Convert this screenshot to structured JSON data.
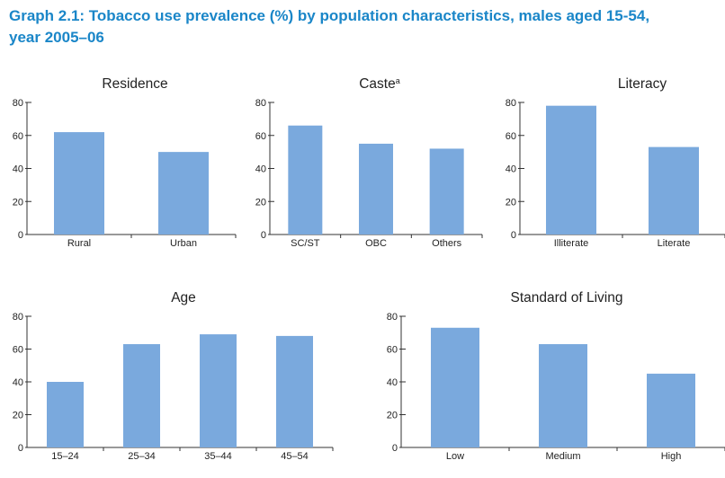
{
  "title_line1": "Graph 2.1: Tobacco use prevalence (%) by population characteristics, males aged 15-54,",
  "title_line2": "year 2005–06",
  "bar_color": "#7aa9dd",
  "title_color": "#1a86c8",
  "chart_data": [
    {
      "type": "bar",
      "title": "Residence",
      "title_sup": "",
      "categories": [
        "Rural",
        "Urban"
      ],
      "values": [
        62,
        50
      ],
      "ylim": [
        0,
        80
      ],
      "yticks": [
        0,
        20,
        40,
        60,
        80
      ]
    },
    {
      "type": "bar",
      "title": "Caste",
      "title_sup": "a",
      "categories": [
        "SC/ST",
        "OBC",
        "Others"
      ],
      "values": [
        66,
        55,
        52
      ],
      "ylim": [
        0,
        80
      ],
      "yticks": [
        0,
        20,
        40,
        60,
        80
      ]
    },
    {
      "type": "bar",
      "title": "Literacy",
      "title_sup": "",
      "categories": [
        "Illiterate",
        "Literate"
      ],
      "values": [
        78,
        53
      ],
      "ylim": [
        0,
        80
      ],
      "yticks": [
        0,
        20,
        40,
        60,
        80
      ]
    },
    {
      "type": "bar",
      "title": "Age",
      "title_sup": "",
      "categories": [
        "15–24",
        "25–34",
        "35–44",
        "45–54"
      ],
      "values": [
        40,
        63,
        69,
        68
      ],
      "ylim": [
        0,
        80
      ],
      "yticks": [
        0,
        20,
        40,
        60,
        80
      ]
    },
    {
      "type": "bar",
      "title": "Standard of Living",
      "title_sup": "",
      "categories": [
        "Low",
        "Medium",
        "High"
      ],
      "values": [
        73,
        63,
        45
      ],
      "ylim": [
        0,
        80
      ],
      "yticks": [
        0,
        20,
        40,
        60,
        80
      ]
    }
  ]
}
